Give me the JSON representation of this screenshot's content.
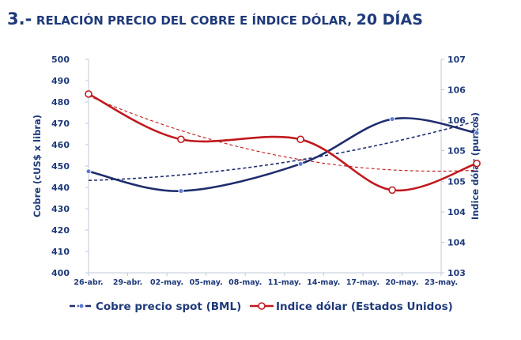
{
  "title": {
    "number": "3.-",
    "main": "RELACIÓN PRECIO DEL COBRE E ÍNDICE DÓLAR,",
    "suffix": "20 DÍAS"
  },
  "chart_data": {
    "type": "line",
    "categories": [
      "26-abr.",
      "29-abr.",
      "02-may.",
      "05-may.",
      "08-may.",
      "11-may.",
      "14-may.",
      "17-may.",
      "20-may.",
      "23-may."
    ],
    "ylabel": "Cobre (cUS$ x libra)",
    "y2label": "Indice dólar (puntos)",
    "ylim": [
      400,
      500
    ],
    "y2lim": [
      103,
      107
    ],
    "yticks": [
      "400",
      "410",
      "420",
      "430",
      "440",
      "450",
      "460",
      "470",
      "480",
      "490",
      "500"
    ],
    "y2ticks": [
      "103",
      "104",
      "104",
      "105",
      "105",
      "106",
      "106",
      "107"
    ],
    "y2tick_values": [
      103,
      103.57,
      104.14,
      104.71,
      105.29,
      105.86,
      106.43,
      107
    ],
    "grid": false,
    "legend_position": "bottom",
    "colors": {
      "copper": "#1f2d6e",
      "dollar": "#c0191d",
      "text": "#1f3a7a",
      "axis": "#c0c8d8"
    },
    "series": [
      {
        "name": "Cobre precio spot (BML)",
        "axis": "left",
        "marker": "filled-circle",
        "x": [
          0,
          2.36,
          5.41,
          7.75,
          9.91
        ],
        "values": [
          447.5,
          438.3,
          451.0,
          472.0,
          465.5
        ]
      },
      {
        "name": "Indice dólar (Estados Unidos)",
        "axis": "right",
        "marker": "open-circle",
        "x": [
          0,
          2.36,
          5.41,
          7.75,
          9.91
        ],
        "values": [
          106.35,
          105.5,
          105.5,
          104.55,
          105.05
        ]
      }
    ]
  }
}
